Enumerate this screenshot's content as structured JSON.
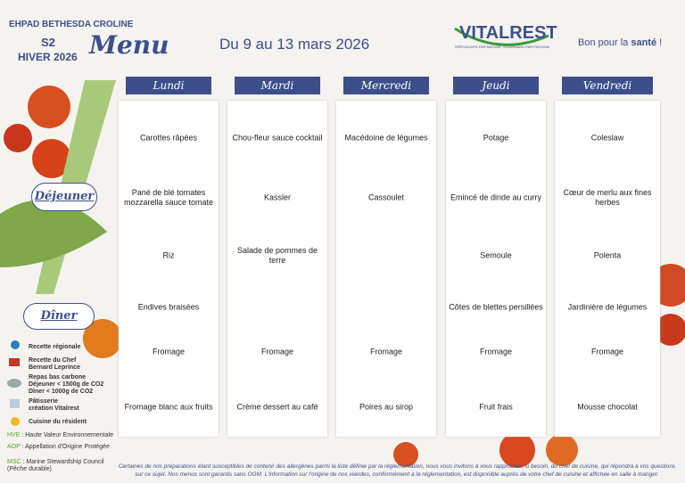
{
  "header": {
    "establishment": "EHPAD BETHESDA CROLINE",
    "week": "S2",
    "season": "HIVER 2026",
    "menu": "Menu",
    "dates": "Du 9 au 13 mars 2026",
    "brand": "VITALREST",
    "brand_tagline": "SPÉCIALISTE PAR NATURE, GOURMAND PAR PASSION",
    "slogan": {
      "start": "Bon pour la",
      "bold": "santé",
      "end": "!"
    }
  },
  "meals": {
    "lunch": "Déjeuner",
    "dinner": "Dîner"
  },
  "days": [
    {
      "name": "Lundi",
      "lunch": [
        "Carottes râpées",
        "Pané de blé tomates mozzarella sauce tomate",
        "Riz"
      ],
      "dinner": [
        "Endives braisées",
        "Fromage",
        "Fromage blanc aux fruits"
      ]
    },
    {
      "name": "Mardi",
      "lunch": [
        "Chou-fleur sauce cocktail",
        "Kassler",
        "Salade de pommes de terre"
      ],
      "dinner": [
        null,
        "Fromage",
        "Crème dessert au café"
      ]
    },
    {
      "name": "Mercredi",
      "lunch": [
        "Macédoine de légumes",
        "Cassoulet",
        null
      ],
      "dinner": [
        null,
        "Fromage",
        "Poires au sirop"
      ]
    },
    {
      "name": "Jeudi",
      "lunch": [
        "Potage",
        "Emincé de dinde au curry",
        "Semoule"
      ],
      "dinner": [
        "Côtes de blettes persillées",
        "Fromage",
        "Fruit frais"
      ]
    },
    {
      "name": "Vendredi",
      "lunch": [
        "Coleslaw",
        "Cœur de merlu aux fines herbes",
        "Polenta"
      ],
      "dinner": [
        "Jardinière de légumes",
        "Fromage",
        "Mousse chocolat"
      ]
    }
  ],
  "legend": [
    {
      "lines": [
        "Recette régionale"
      ]
    },
    {
      "lines": [
        "Recette du Chef",
        "Bernard Leprince"
      ]
    },
    {
      "lines": [
        "Repas bas carbone",
        "Déjeuner < 1500g de CO2",
        "Dîner < 1000g de CO2"
      ]
    },
    {
      "lines": [
        "Pâtisserie",
        "création Vitalrest"
      ]
    },
    {
      "lines": [
        "Cuisine du résident"
      ]
    }
  ],
  "abbreviations": [
    {
      "code": "HVE",
      "text": ": Haute Valeur Environnementale"
    },
    {
      "code": "AOP",
      "text": ": Appellation d'Origine Protégée"
    },
    {
      "code": "MSC",
      "text": ": Marine Stewardship Council (Pêche durable)"
    }
  ],
  "footer": "Certaines de nos préparations étant susceptibles de contenir des allergènes parmi la liste définie par la réglementation, nous vous invitons à vous rapprocher, si besoin, du chef de cuisine, qui répondra à vos questions sur ce sujet. Nos menus sont garantis sans OGM. L'information sur l'origine de nos viandes, conformément à la réglementation, est disponible auprès de votre chef de cuisine et affichée en salle à manger."
}
